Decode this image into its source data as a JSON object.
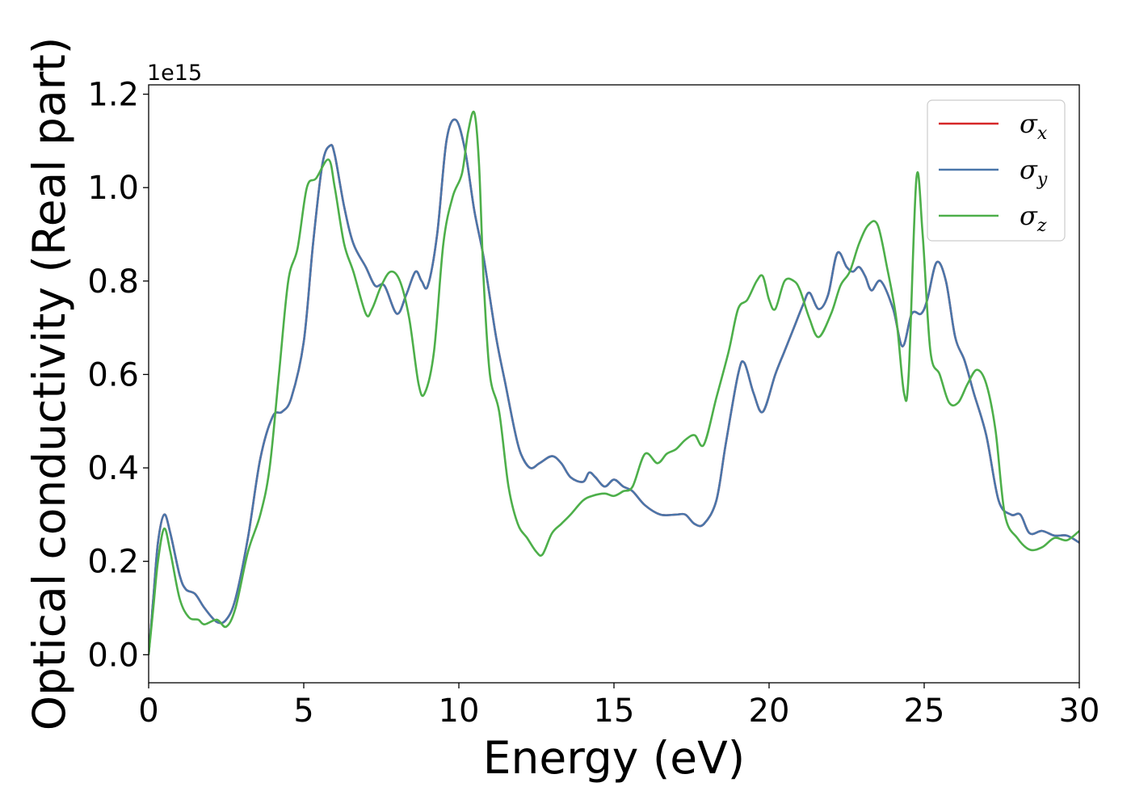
{
  "chart_data": {
    "type": "line",
    "title": "",
    "xlabel": "Energy (eV)",
    "ylabel": "Optical conductivity (Real part)",
    "y_offset_label": "1e15",
    "xlim": [
      0,
      30
    ],
    "ylim": [
      -0.06,
      1.22
    ],
    "xticks": [
      0,
      5,
      10,
      15,
      20,
      25,
      30
    ],
    "xtick_labels": [
      "0",
      "5",
      "10",
      "15",
      "20",
      "25",
      "30"
    ],
    "yticks": [
      0.0,
      0.2,
      0.4,
      0.6,
      0.8,
      1.0,
      1.2
    ],
    "ytick_labels": [
      "0.0",
      "0.2",
      "0.4",
      "0.6",
      "0.8",
      "1.0",
      "1.2"
    ],
    "grid": false,
    "legend_position": "top-right",
    "series": [
      {
        "name": "σ",
        "subscript": "x",
        "color": "#d62728",
        "x": [
          0,
          0.15,
          0.3,
          0.5,
          0.7,
          1.0,
          1.2,
          1.5,
          1.8,
          2.2,
          2.5,
          2.8,
          3.2,
          3.6,
          4.0,
          4.3,
          4.6,
          5.0,
          5.3,
          5.6,
          5.85,
          6.0,
          6.3,
          6.6,
          7.0,
          7.3,
          7.6,
          8.0,
          8.3,
          8.6,
          8.8,
          9.0,
          9.3,
          9.6,
          9.9,
          10.2,
          10.5,
          10.8,
          11.2,
          11.5,
          11.8,
          12.0,
          12.3,
          12.6,
          13.0,
          13.3,
          13.6,
          14.0,
          14.2,
          14.4,
          14.7,
          15.0,
          15.3,
          15.6,
          16.0,
          16.5,
          17.0,
          17.3,
          17.6,
          17.9,
          18.3,
          18.6,
          19.0,
          19.2,
          19.5,
          19.8,
          20.2,
          20.5,
          20.8,
          21.1,
          21.3,
          21.6,
          21.9,
          22.2,
          22.5,
          22.7,
          22.9,
          23.1,
          23.3,
          23.6,
          24.0,
          24.3,
          24.6,
          24.9,
          25.1,
          25.4,
          25.7,
          26.0,
          26.3,
          26.6,
          27.0,
          27.4,
          27.8,
          28.1,
          28.4,
          28.8,
          29.2,
          29.6,
          30.0
        ],
        "y": [
          0.0,
          0.12,
          0.24,
          0.3,
          0.26,
          0.17,
          0.14,
          0.13,
          0.1,
          0.07,
          0.075,
          0.12,
          0.25,
          0.42,
          0.51,
          0.52,
          0.55,
          0.67,
          0.88,
          1.05,
          1.09,
          1.07,
          0.96,
          0.88,
          0.83,
          0.79,
          0.79,
          0.73,
          0.77,
          0.82,
          0.8,
          0.79,
          0.9,
          1.1,
          1.145,
          1.08,
          0.95,
          0.85,
          0.68,
          0.58,
          0.48,
          0.43,
          0.4,
          0.41,
          0.425,
          0.41,
          0.38,
          0.37,
          0.39,
          0.38,
          0.36,
          0.375,
          0.36,
          0.35,
          0.32,
          0.3,
          0.3,
          0.3,
          0.28,
          0.28,
          0.33,
          0.45,
          0.6,
          0.625,
          0.56,
          0.52,
          0.6,
          0.65,
          0.7,
          0.75,
          0.775,
          0.74,
          0.77,
          0.86,
          0.83,
          0.82,
          0.83,
          0.81,
          0.78,
          0.8,
          0.74,
          0.66,
          0.73,
          0.73,
          0.76,
          0.84,
          0.8,
          0.68,
          0.63,
          0.56,
          0.47,
          0.33,
          0.3,
          0.3,
          0.26,
          0.265,
          0.255,
          0.255,
          0.24
        ]
      },
      {
        "name": "σ",
        "subscript": "y",
        "color": "#4a76aa",
        "x": [
          0,
          0.15,
          0.3,
          0.5,
          0.7,
          1.0,
          1.2,
          1.5,
          1.8,
          2.2,
          2.5,
          2.8,
          3.2,
          3.6,
          4.0,
          4.3,
          4.6,
          5.0,
          5.3,
          5.6,
          5.85,
          6.0,
          6.3,
          6.6,
          7.0,
          7.3,
          7.6,
          8.0,
          8.3,
          8.6,
          8.8,
          9.0,
          9.3,
          9.6,
          9.9,
          10.2,
          10.5,
          10.8,
          11.2,
          11.5,
          11.8,
          12.0,
          12.3,
          12.6,
          13.0,
          13.3,
          13.6,
          14.0,
          14.2,
          14.4,
          14.7,
          15.0,
          15.3,
          15.6,
          16.0,
          16.5,
          17.0,
          17.3,
          17.6,
          17.9,
          18.3,
          18.6,
          19.0,
          19.2,
          19.5,
          19.8,
          20.2,
          20.5,
          20.8,
          21.1,
          21.3,
          21.6,
          21.9,
          22.2,
          22.5,
          22.7,
          22.9,
          23.1,
          23.3,
          23.6,
          24.0,
          24.3,
          24.6,
          24.9,
          25.1,
          25.4,
          25.7,
          26.0,
          26.3,
          26.6,
          27.0,
          27.4,
          27.8,
          28.1,
          28.4,
          28.8,
          29.2,
          29.6,
          30.0
        ],
        "y": [
          0.0,
          0.12,
          0.24,
          0.3,
          0.26,
          0.17,
          0.14,
          0.13,
          0.1,
          0.07,
          0.075,
          0.12,
          0.25,
          0.42,
          0.51,
          0.52,
          0.55,
          0.67,
          0.88,
          1.05,
          1.09,
          1.07,
          0.96,
          0.88,
          0.83,
          0.79,
          0.79,
          0.73,
          0.77,
          0.82,
          0.8,
          0.79,
          0.9,
          1.1,
          1.145,
          1.08,
          0.95,
          0.85,
          0.68,
          0.58,
          0.48,
          0.43,
          0.4,
          0.41,
          0.425,
          0.41,
          0.38,
          0.37,
          0.39,
          0.38,
          0.36,
          0.375,
          0.36,
          0.35,
          0.32,
          0.3,
          0.3,
          0.3,
          0.28,
          0.28,
          0.33,
          0.45,
          0.6,
          0.625,
          0.56,
          0.52,
          0.6,
          0.65,
          0.7,
          0.75,
          0.775,
          0.74,
          0.77,
          0.86,
          0.83,
          0.82,
          0.83,
          0.81,
          0.78,
          0.8,
          0.74,
          0.66,
          0.73,
          0.73,
          0.76,
          0.84,
          0.8,
          0.68,
          0.63,
          0.56,
          0.47,
          0.33,
          0.3,
          0.3,
          0.26,
          0.265,
          0.255,
          0.255,
          0.24
        ]
      },
      {
        "name": "σ",
        "subscript": "z",
        "color": "#4daf4a",
        "x": [
          0,
          0.15,
          0.3,
          0.5,
          0.7,
          1.0,
          1.3,
          1.6,
          1.8,
          2.2,
          2.5,
          2.8,
          3.2,
          3.6,
          3.9,
          4.2,
          4.5,
          4.8,
          5.1,
          5.4,
          5.8,
          6.0,
          6.3,
          6.6,
          7.0,
          7.2,
          7.5,
          7.8,
          8.1,
          8.4,
          8.7,
          8.9,
          9.2,
          9.5,
          9.8,
          10.1,
          10.3,
          10.5,
          10.65,
          10.8,
          11.0,
          11.3,
          11.6,
          11.9,
          12.2,
          12.5,
          12.7,
          13.0,
          13.3,
          13.6,
          14.0,
          14.3,
          14.7,
          15.0,
          15.3,
          15.6,
          16.0,
          16.4,
          16.7,
          17.0,
          17.3,
          17.6,
          17.9,
          18.3,
          18.7,
          19.0,
          19.3,
          19.6,
          19.8,
          20.0,
          20.2,
          20.5,
          20.8,
          21.0,
          21.3,
          21.6,
          22.0,
          22.3,
          22.6,
          22.9,
          23.2,
          23.5,
          23.8,
          24.1,
          24.35,
          24.5,
          24.75,
          24.95,
          25.2,
          25.5,
          25.8,
          26.1,
          26.4,
          26.7,
          27.0,
          27.3,
          27.6,
          28.0,
          28.4,
          28.8,
          29.2,
          29.6,
          30.0
        ],
        "y": [
          0.0,
          0.1,
          0.2,
          0.27,
          0.22,
          0.12,
          0.08,
          0.075,
          0.065,
          0.075,
          0.06,
          0.1,
          0.22,
          0.3,
          0.4,
          0.6,
          0.8,
          0.87,
          1.0,
          1.02,
          1.06,
          1.0,
          0.88,
          0.82,
          0.73,
          0.74,
          0.79,
          0.82,
          0.8,
          0.72,
          0.58,
          0.56,
          0.65,
          0.88,
          0.98,
          1.03,
          1.12,
          1.16,
          1.05,
          0.8,
          0.6,
          0.52,
          0.36,
          0.28,
          0.25,
          0.22,
          0.215,
          0.26,
          0.28,
          0.3,
          0.33,
          0.34,
          0.345,
          0.34,
          0.35,
          0.36,
          0.43,
          0.41,
          0.43,
          0.44,
          0.46,
          0.47,
          0.45,
          0.55,
          0.65,
          0.74,
          0.76,
          0.8,
          0.81,
          0.76,
          0.74,
          0.8,
          0.8,
          0.78,
          0.72,
          0.68,
          0.73,
          0.79,
          0.82,
          0.88,
          0.92,
          0.92,
          0.83,
          0.72,
          0.56,
          0.6,
          1.02,
          0.9,
          0.65,
          0.6,
          0.54,
          0.54,
          0.58,
          0.61,
          0.58,
          0.48,
          0.3,
          0.25,
          0.225,
          0.23,
          0.25,
          0.245,
          0.265
        ]
      }
    ]
  }
}
